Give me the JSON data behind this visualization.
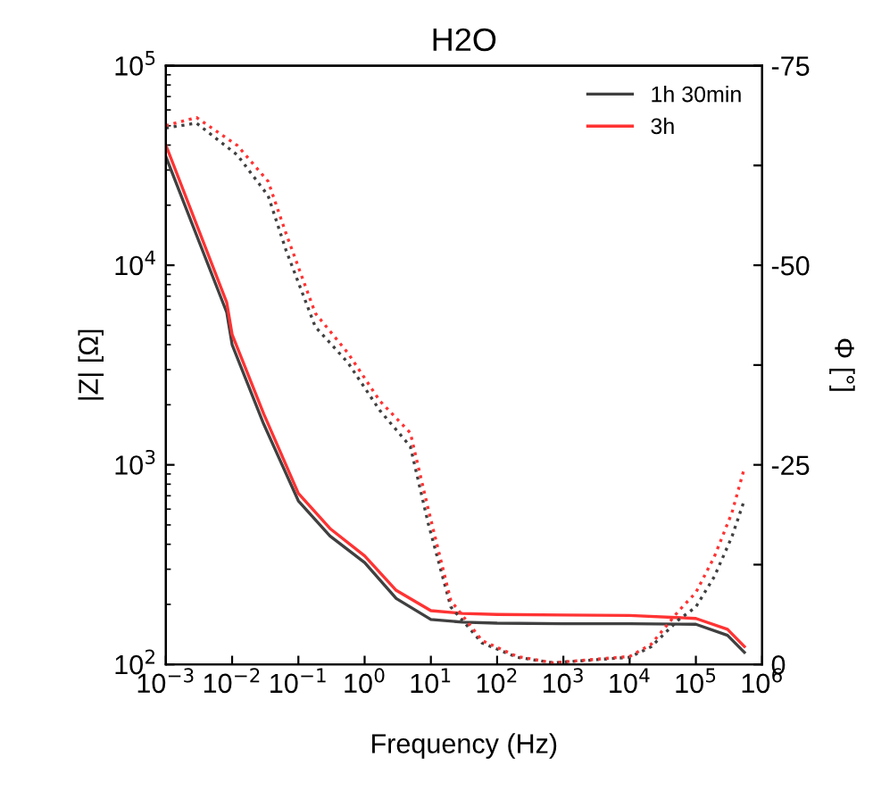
{
  "chart_data": {
    "type": "line",
    "title": "H2O",
    "xlabel": "Frequency (Hz)",
    "ylabel": "|Z| [Ω]",
    "y2label": "Φ [°]",
    "log": "xy",
    "grid": false,
    "legend": "top right",
    "marker": "none",
    "xlim": [
      0.001,
      1000000
    ],
    "xticks": [
      {
        "value": 0.001,
        "label": "10$^{−3}$"
      },
      {
        "value": 0.01,
        "label": "10$^{−2}$"
      },
      {
        "value": 0.1,
        "label": "10$^{−1}$"
      },
      {
        "value": 1,
        "label": "10$^{0}$"
      },
      {
        "value": 10,
        "label": "10$^{1}$"
      },
      {
        "value": 100,
        "label": "10$^{2}$"
      },
      {
        "value": 1000,
        "label": "10$^{3}$"
      },
      {
        "value": 10000,
        "label": "10$^{4}$"
      },
      {
        "value": 100000,
        "label": "10$^{5}$"
      },
      {
        "value": 1000000,
        "label": "10$^{6}$"
      }
    ],
    "ylim": [
      100,
      100000
    ],
    "yticks": [
      {
        "value": 100,
        "label": "10$^{2}$"
      },
      {
        "value": 1000,
        "label": "10$^{3}$"
      },
      {
        "value": 10000,
        "label": "10$^{4}$"
      },
      {
        "value": 100000,
        "label": "10$^{5}$"
      }
    ],
    "y2lim": [
      0,
      -75
    ],
    "y2ticks": [
      0,
      {
        "value": -12.5,
        "label": null
      },
      -25,
      {
        "value": -37.5,
        "label": null
      },
      -50,
      {
        "value": -62.5,
        "label": null
      },
      -75
    ],
    "series": [
      {
        "name": "1h 30min",
        "color": "#404040",
        "line_style": "solid",
        "x": [
          0.001,
          0.0083,
          0.01,
          0.03,
          0.1,
          0.3,
          1,
          3,
          10,
          30,
          100,
          1000,
          10000,
          100000,
          300000,
          540000
        ],
        "values": [
          35000,
          5800,
          4000,
          1600,
          660,
          440,
          324,
          214,
          168,
          163,
          161,
          160,
          160,
          159,
          140,
          115
        ]
      },
      {
        "name": "3h",
        "color": "#ff3333",
        "line_style": "solid",
        "x": [
          0.001,
          0.0083,
          0.01,
          0.03,
          0.1,
          0.3,
          1,
          3,
          10,
          30,
          100,
          1000,
          10000,
          100000,
          300000,
          540000
        ],
        "values": [
          40000,
          6500,
          4500,
          1800,
          720,
          480,
          350,
          235,
          186,
          180,
          178,
          177,
          176,
          170,
          150,
          123
        ]
      },
      {
        "color": "#404040",
        "axis": "y2",
        "line_style": "dotted",
        "x": [
          0.001,
          0.0029,
          0.012,
          0.035,
          0.065,
          0.18,
          0.56,
          1.7,
          4.9,
          9.1,
          20,
          59,
          200,
          700,
          10000,
          21000,
          55000,
          100000,
          190000,
          350000,
          540000
        ],
        "values": [
          -67.2,
          -67.8,
          -63.8,
          -58.7,
          -51.9,
          -42.3,
          -37.8,
          -31.8,
          -27.3,
          -17.7,
          -7.2,
          -2.7,
          -0.9,
          -0.2,
          -0.9,
          -2.2,
          -5.6,
          -7.2,
          -11,
          -16,
          -20.6
        ]
      },
      {
        "color": "#ff3333",
        "axis": "y2",
        "line_style": "dotted",
        "x": [
          0.001,
          0.0029,
          0.012,
          0.035,
          0.065,
          0.18,
          0.56,
          1.7,
          4.9,
          9.1,
          20,
          59,
          200,
          700,
          10000,
          21000,
          55000,
          100000,
          190000,
          350000,
          540000
        ],
        "values": [
          -67.5,
          -68.5,
          -65,
          -60.5,
          -54,
          -44,
          -39,
          -33,
          -29,
          -19.5,
          -8,
          -3,
          -1,
          -0.2,
          -1,
          -2.5,
          -6.7,
          -9,
          -13.5,
          -19,
          -24.6
        ]
      }
    ]
  }
}
